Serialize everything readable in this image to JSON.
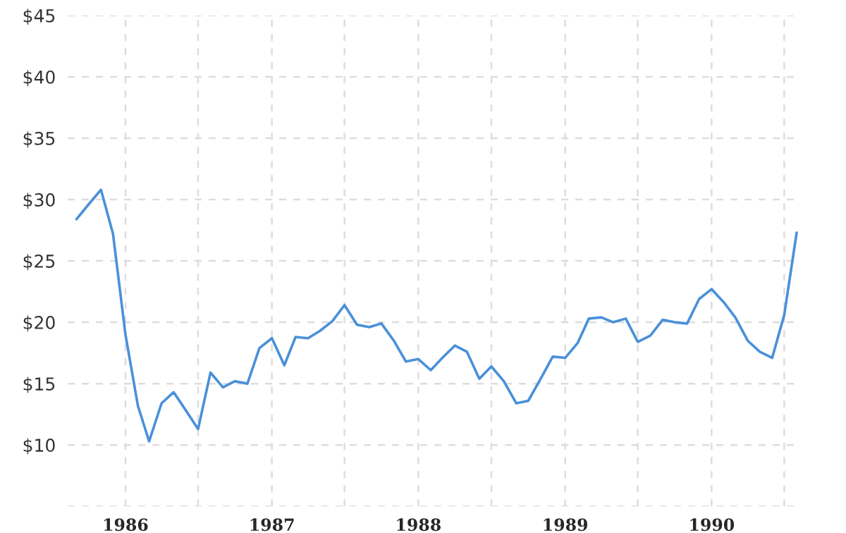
{
  "chart_data": {
    "type": "line",
    "x": [
      "1985-09",
      "1985-10",
      "1985-11",
      "1985-12",
      "1986-01",
      "1986-02",
      "1986-03",
      "1986-04",
      "1986-05",
      "1986-06",
      "1986-07",
      "1986-08",
      "1986-09",
      "1986-10",
      "1986-11",
      "1986-12",
      "1987-01",
      "1987-02",
      "1987-03",
      "1987-04",
      "1987-05",
      "1987-06",
      "1987-07",
      "1987-08",
      "1987-09",
      "1987-10",
      "1987-11",
      "1987-12",
      "1988-01",
      "1988-02",
      "1988-03",
      "1988-04",
      "1988-05",
      "1988-06",
      "1988-07",
      "1988-08",
      "1988-09",
      "1988-10",
      "1988-11",
      "1988-12",
      "1989-01",
      "1989-02",
      "1989-03",
      "1989-04",
      "1989-05",
      "1989-06",
      "1989-07",
      "1989-08",
      "1989-09",
      "1989-10",
      "1989-11",
      "1989-12",
      "1990-01",
      "1990-02",
      "1990-03",
      "1990-04",
      "1990-05",
      "1990-06",
      "1990-07",
      "1990-08"
    ],
    "series": [
      {
        "color": "#4a90d9",
        "values": [
          28.4,
          29.6,
          30.8,
          27.2,
          19.0,
          13.2,
          10.3,
          13.4,
          14.3,
          12.8,
          11.3,
          15.9,
          14.7,
          15.2,
          15.0,
          17.9,
          18.7,
          16.5,
          18.8,
          18.7,
          19.3,
          20.1,
          21.4,
          19.8,
          19.6,
          19.9,
          18.5,
          16.8,
          17.0,
          16.1,
          17.1,
          18.1,
          17.6,
          15.4,
          16.4,
          15.2,
          13.4,
          13.6,
          15.4,
          17.2,
          17.1,
          18.3,
          20.3,
          20.4,
          20.0,
          20.3,
          18.4,
          18.9,
          20.2,
          20.0,
          19.9,
          21.9,
          22.7,
          21.6,
          20.4,
          18.5,
          17.6,
          17.1,
          20.6,
          27.3
        ]
      }
    ],
    "xlim": [
      "1985-08-10",
      "1990-08-08"
    ],
    "xticks": [
      {
        "value": "1986-01-01",
        "label": "1986"
      },
      {
        "value": "1986-07-01",
        "label": null
      },
      {
        "value": "1987-01-01",
        "label": "1987"
      },
      {
        "value": "1987-07-01",
        "label": null
      },
      {
        "value": "1988-01-01",
        "label": "1988"
      },
      {
        "value": "1988-07-01",
        "label": null
      },
      {
        "value": "1989-01-01",
        "label": "1989"
      },
      {
        "value": "1989-07-01",
        "label": null
      },
      {
        "value": "1990-01-01",
        "label": "1990"
      },
      {
        "value": "1990-07-01",
        "label": null
      }
    ],
    "ylim": [
      5,
      45
    ],
    "yticks": [
      {
        "value": 5,
        "label": null
      },
      {
        "value": 10,
        "label": "$10"
      },
      {
        "value": 15,
        "label": "$15"
      },
      {
        "value": 20,
        "label": "$20"
      },
      {
        "value": 25,
        "label": "$25"
      },
      {
        "value": 30,
        "label": "$30"
      },
      {
        "value": 35,
        "label": "$35"
      },
      {
        "value": 40,
        "label": "$40"
      },
      {
        "value": 45,
        "label": "$45"
      }
    ],
    "grid": true,
    "legend": false,
    "marker": "none",
    "line_style": "solid"
  }
}
